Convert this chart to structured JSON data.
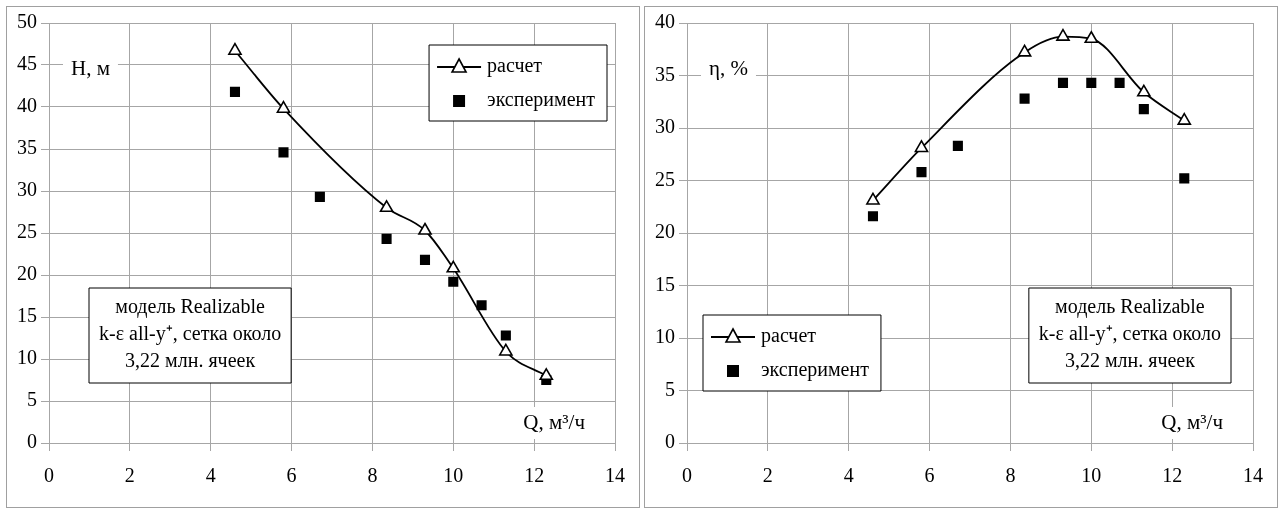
{
  "chart_data": [
    {
      "type": "scatter",
      "xlabel": "Q, м³/ч",
      "ylabel": "H, м",
      "xlim": [
        0,
        14
      ],
      "xticks": [
        0,
        2,
        4,
        6,
        8,
        10,
        12,
        14
      ],
      "ylim": [
        0,
        50
      ],
      "yticks": [
        0,
        5,
        10,
        15,
        20,
        25,
        30,
        35,
        40,
        45,
        50
      ],
      "grid": true,
      "legend": "top right",
      "annotations": [
        "модель Realizable\nk-ε all-y⁺, сетка около\n3,22 млн. ячеек"
      ],
      "series": [
        {
          "name": "расчет",
          "type": "line",
          "color": "#000000",
          "marker": "triangle",
          "line_style": "solid",
          "x": [
            4.6,
            5.8,
            8.35,
            9.3,
            10,
            11.3,
            12.3
          ],
          "values": [
            46.7,
            39.8,
            28,
            25.3,
            20.8,
            10.9,
            8.0
          ]
        },
        {
          "name": "эксперимент",
          "type": "scatter",
          "color": "#000000",
          "marker": "square",
          "x": [
            4.6,
            5.8,
            6.7,
            8.35,
            9.3,
            10,
            10.7,
            11.3,
            12.3
          ],
          "values": [
            41.8,
            34.6,
            29.3,
            24.3,
            21.8,
            19.2,
            16.4,
            12.8,
            7.5
          ]
        }
      ]
    },
    {
      "type": "scatter",
      "xlabel": "Q, м³/ч",
      "ylabel": "η, %",
      "xlim": [
        0,
        14
      ],
      "xticks": [
        0,
        2,
        4,
        6,
        8,
        10,
        12,
        14
      ],
      "ylim": [
        0,
        40
      ],
      "yticks": [
        0,
        5,
        10,
        15,
        20,
        25,
        30,
        35,
        40
      ],
      "grid": true,
      "legend": "bottom left",
      "annotations": [
        "модель Realizable\nk-ε all-y⁺, сетка около\n3,22 млн. ячеек"
      ],
      "series": [
        {
          "name": "расчет",
          "type": "line",
          "color": "#000000",
          "marker": "triangle",
          "line_style": "solid",
          "x": [
            4.6,
            5.8,
            8.35,
            9.3,
            10,
            11.3,
            12.3
          ],
          "values": [
            23.1,
            28.1,
            37.2,
            38.7,
            38.5,
            33.4,
            30.7
          ]
        },
        {
          "name": "эксперимент",
          "type": "scatter",
          "color": "#000000",
          "marker": "square",
          "x": [
            4.6,
            5.8,
            6.7,
            8.35,
            9.3,
            10,
            10.7,
            11.3,
            12.3
          ],
          "values": [
            21.6,
            25.8,
            28.3,
            32.8,
            34.3,
            34.3,
            34.3,
            31.8,
            25.2
          ]
        }
      ]
    }
  ]
}
